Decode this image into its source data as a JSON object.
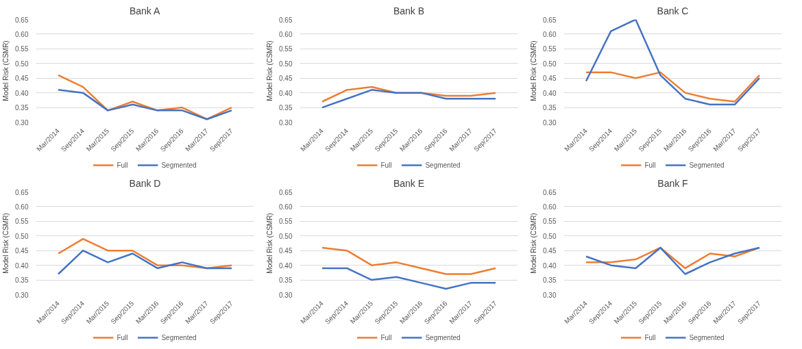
{
  "chart_data": [
    {
      "type": "line",
      "title": "Bank A",
      "ylabel": "Model Risk (CSMR)",
      "categories": [
        "Mar/2014",
        "Sep/2014",
        "Mar/2015",
        "Sep/2015",
        "Mar/2016",
        "Sep/2016",
        "Mar/2017",
        "Sep/2017"
      ],
      "ylim": [
        0.3,
        0.65
      ],
      "yticks": [
        {
          "value": 0.3,
          "label": "0.30"
        },
        {
          "value": 0.35,
          "label": "0.35"
        },
        {
          "value": 0.4,
          "label": "0.40"
        },
        {
          "value": 0.45,
          "label": "0.45"
        },
        {
          "value": 0.5,
          "label": "0.50"
        },
        {
          "value": 0.55,
          "label": "0.55"
        },
        {
          "value": 0.6,
          "label": "0.60"
        },
        {
          "value": 0.65,
          "label": "0.65"
        }
      ],
      "grid": "y",
      "legend": "bottom",
      "series": [
        {
          "name": "Full",
          "color": "#ed7d31",
          "values": [
            0.46,
            0.42,
            0.34,
            0.37,
            0.34,
            0.35,
            0.31,
            0.35
          ]
        },
        {
          "name": "Segmented",
          "color": "#4472c4",
          "values": [
            0.41,
            0.4,
            0.34,
            0.36,
            0.34,
            0.34,
            0.31,
            0.34
          ]
        }
      ]
    },
    {
      "type": "line",
      "title": "Bank B",
      "ylabel": "Model Risk (CSMR)",
      "categories": [
        "Mar/2014",
        "Sep/2014",
        "Mar/2015",
        "Sep/2015",
        "Mar/2016",
        "Sep/2016",
        "Mar/2017",
        "Sep/2017"
      ],
      "ylim": [
        0.3,
        0.65
      ],
      "yticks": [
        {
          "value": 0.3,
          "label": "0.30"
        },
        {
          "value": 0.35,
          "label": "0.35"
        },
        {
          "value": 0.4,
          "label": "0.40"
        },
        {
          "value": 0.45,
          "label": "0.45"
        },
        {
          "value": 0.5,
          "label": "0.50"
        },
        {
          "value": 0.55,
          "label": "0.55"
        },
        {
          "value": 0.6,
          "label": "0.60"
        },
        {
          "value": 0.65,
          "label": "0.65"
        }
      ],
      "grid": "y",
      "legend": "bottom",
      "series": [
        {
          "name": "Full",
          "color": "#ed7d31",
          "values": [
            0.37,
            0.41,
            0.42,
            0.4,
            0.4,
            0.39,
            0.39,
            0.4
          ]
        },
        {
          "name": "Segmented",
          "color": "#4472c4",
          "values": [
            0.35,
            0.38,
            0.41,
            0.4,
            0.4,
            0.38,
            0.38,
            0.38
          ]
        }
      ]
    },
    {
      "type": "line",
      "title": "Bank C",
      "ylabel": "Model Risk (CSMR)",
      "categories": [
        "Mar/2014",
        "Sep/2014",
        "Mar/2015",
        "Sep/2015",
        "Mar/2016",
        "Sep/2016",
        "Mar/2017",
        "Sep/2017"
      ],
      "ylim": [
        0.3,
        0.65
      ],
      "yticks": [
        {
          "value": 0.3,
          "label": "0.30"
        },
        {
          "value": 0.35,
          "label": "0.35"
        },
        {
          "value": 0.4,
          "label": "0.40"
        },
        {
          "value": 0.45,
          "label": "0.45"
        },
        {
          "value": 0.5,
          "label": "0.50"
        },
        {
          "value": 0.55,
          "label": "0.55"
        },
        {
          "value": 0.6,
          "label": "0.60"
        },
        {
          "value": 0.65,
          "label": "0.65"
        }
      ],
      "grid": "y",
      "legend": "bottom",
      "series": [
        {
          "name": "Full",
          "color": "#ed7d31",
          "values": [
            0.47,
            0.47,
            0.45,
            0.47,
            0.4,
            0.38,
            0.37,
            0.46
          ]
        },
        {
          "name": "Segmented",
          "color": "#4472c4",
          "values": [
            0.44,
            0.61,
            0.65,
            0.46,
            0.38,
            0.36,
            0.36,
            0.45
          ]
        }
      ]
    },
    {
      "type": "line",
      "title": "Bank D",
      "ylabel": "Model Risk (CSMR)",
      "categories": [
        "Mar/2014",
        "Sep/2014",
        "Mar/2015",
        "Sep/2015",
        "Mar/2016",
        "Sep/2016",
        "Mar/2017",
        "Sep/2017"
      ],
      "ylim": [
        0.3,
        0.65
      ],
      "yticks": [
        {
          "value": 0.3,
          "label": "0.30"
        },
        {
          "value": 0.35,
          "label": "0.35"
        },
        {
          "value": 0.4,
          "label": "0.40"
        },
        {
          "value": 0.45,
          "label": "0.45"
        },
        {
          "value": 0.5,
          "label": "0.50"
        },
        {
          "value": 0.55,
          "label": "0.55"
        },
        {
          "value": 0.6,
          "label": "0.60"
        },
        {
          "value": 0.65,
          "label": "0.65"
        }
      ],
      "grid": "y",
      "legend": "bottom",
      "series": [
        {
          "name": "Full",
          "color": "#ed7d31",
          "values": [
            0.44,
            0.49,
            0.45,
            0.45,
            0.4,
            0.4,
            0.39,
            0.4
          ]
        },
        {
          "name": "Segmented",
          "color": "#4472c4",
          "values": [
            0.37,
            0.45,
            0.41,
            0.44,
            0.39,
            0.41,
            0.39,
            0.39
          ]
        }
      ]
    },
    {
      "type": "line",
      "title": "Bank E",
      "ylabel": "Model Risk (CSMR)",
      "categories": [
        "Mar/2014",
        "Sep/2014",
        "Mar/2015",
        "Sep/2015",
        "Mar/2016",
        "Sep/2016",
        "Mar/2017",
        "Sep/2017"
      ],
      "ylim": [
        0.3,
        0.65
      ],
      "yticks": [
        {
          "value": 0.3,
          "label": "0.30"
        },
        {
          "value": 0.35,
          "label": "0.35"
        },
        {
          "value": 0.4,
          "label": "0.40"
        },
        {
          "value": 0.45,
          "label": "0.45"
        },
        {
          "value": 0.5,
          "label": "0.50"
        },
        {
          "value": 0.55,
          "label": "0.55"
        },
        {
          "value": 0.6,
          "label": "0.60"
        },
        {
          "value": 0.65,
          "label": "0.65"
        }
      ],
      "grid": "y",
      "legend": "bottom",
      "series": [
        {
          "name": "Full",
          "color": "#ed7d31",
          "values": [
            0.46,
            0.45,
            0.4,
            0.41,
            0.39,
            0.37,
            0.37,
            0.39
          ]
        },
        {
          "name": "Segmented",
          "color": "#4472c4",
          "values": [
            0.39,
            0.39,
            0.35,
            0.36,
            0.34,
            0.32,
            0.34,
            0.34
          ]
        }
      ]
    },
    {
      "type": "line",
      "title": "Bank F",
      "ylabel": "Model Risk (CSMR)",
      "categories": [
        "Mar/2014",
        "Sep/2014",
        "Mar/2015",
        "Sep/2015",
        "Mar/2016",
        "Sep/2016",
        "Mar/2017",
        "Sep/2017"
      ],
      "ylim": [
        0.3,
        0.65
      ],
      "yticks": [
        {
          "value": 0.3,
          "label": "0.30"
        },
        {
          "value": 0.35,
          "label": "0.35"
        },
        {
          "value": 0.4,
          "label": "0.40"
        },
        {
          "value": 0.45,
          "label": "0.45"
        },
        {
          "value": 0.5,
          "label": "0.50"
        },
        {
          "value": 0.55,
          "label": "0.55"
        },
        {
          "value": 0.6,
          "label": "0.60"
        },
        {
          "value": 0.65,
          "label": "0.65"
        }
      ],
      "grid": "y",
      "legend": "bottom",
      "series": [
        {
          "name": "Full",
          "color": "#ed7d31",
          "values": [
            0.41,
            0.41,
            0.42,
            0.46,
            0.39,
            0.44,
            0.43,
            0.46
          ]
        },
        {
          "name": "Segmented",
          "color": "#4472c4",
          "values": [
            0.43,
            0.4,
            0.39,
            0.46,
            0.37,
            0.41,
            0.44,
            0.46
          ]
        }
      ]
    }
  ]
}
